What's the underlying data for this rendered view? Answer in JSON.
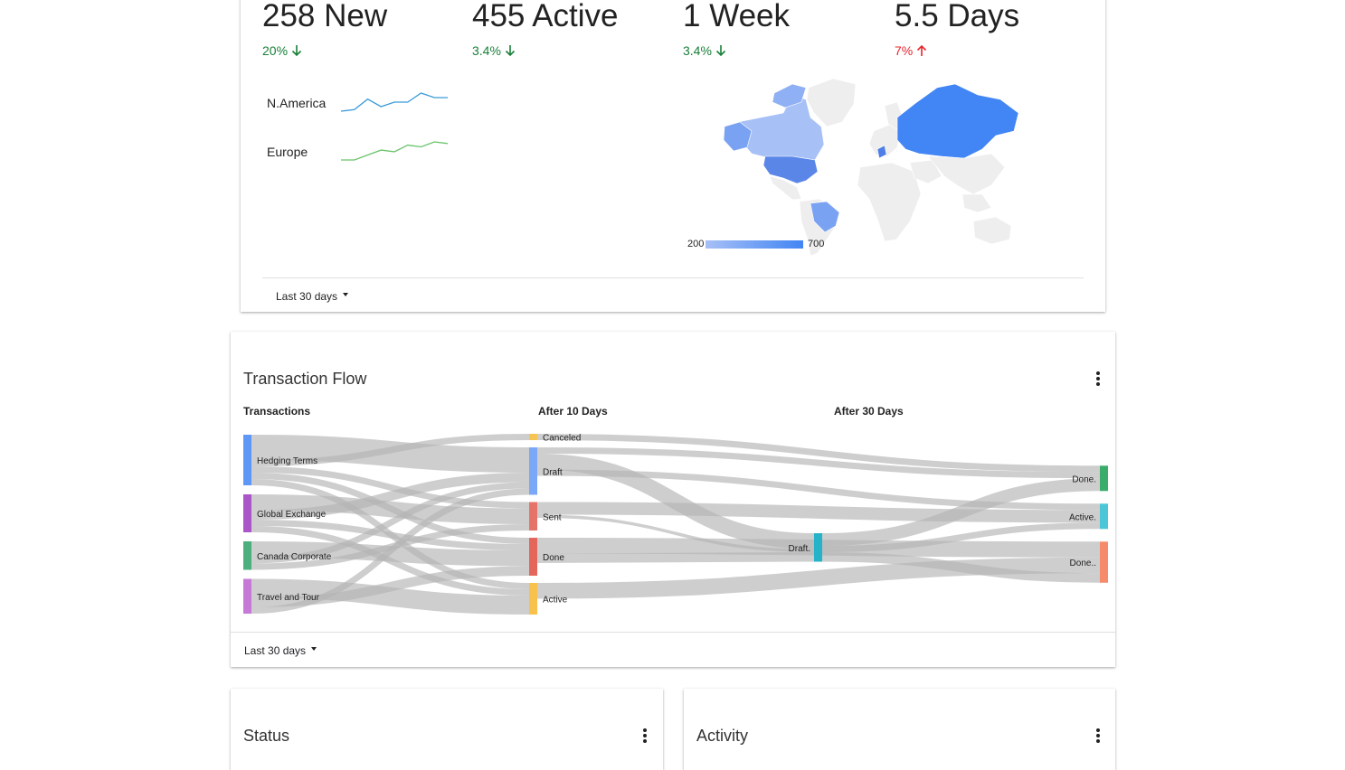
{
  "kpis": [
    {
      "value": "258 New",
      "delta": "20%",
      "direction": "down"
    },
    {
      "value": "455 Active",
      "delta": "3.4%",
      "direction": "down"
    },
    {
      "value": "1 Week",
      "delta": "3.4%",
      "direction": "down"
    },
    {
      "value": "5.5 Days",
      "delta": "7%",
      "direction": "up"
    }
  ],
  "regions": [
    {
      "label": "N.America",
      "color": "#3b9ad9",
      "trend": [
        0,
        1,
        8,
        3,
        6,
        6,
        12,
        9,
        9
      ]
    },
    {
      "label": "Europe",
      "color": "#6ac36a",
      "trend": [
        0,
        0,
        3,
        6,
        5,
        9,
        8,
        11,
        10
      ]
    }
  ],
  "map": {
    "legend_min": "200",
    "legend_max": "700",
    "color_low": "#a7c0f6",
    "color_high": "#4285f4"
  },
  "kpi_footer": {
    "range_label": "Last 30 days"
  },
  "transaction_flow": {
    "title": "Transaction Flow",
    "columns": [
      "Transactions",
      "After 10 Days",
      "After 30 Days"
    ],
    "range_label": "Last 30 days"
  },
  "chart_data": {
    "type": "sankey",
    "nodes": [
      {
        "id": "hedging",
        "label": "Hedging Terms",
        "stage": 0,
        "color": "#5e97f6"
      },
      {
        "id": "global",
        "label": "Global Exchange",
        "stage": 0,
        "color": "#ab56c8"
      },
      {
        "id": "canada",
        "label": "Canada Corporate",
        "stage": 0,
        "color": "#4caf7d"
      },
      {
        "id": "travel",
        "label": "Travel and Tour",
        "stage": 0,
        "color": "#c679d6"
      },
      {
        "id": "canceled",
        "label": "Canceled",
        "stage": 1,
        "color": "#f6c453"
      },
      {
        "id": "draft",
        "label": "Draft",
        "stage": 1,
        "color": "#7ba7f7"
      },
      {
        "id": "sent",
        "label": "Sent",
        "stage": 1,
        "color": "#e57368"
      },
      {
        "id": "done1",
        "label": "Done",
        "stage": 1,
        "color": "#e4665a"
      },
      {
        "id": "active1",
        "label": "Active",
        "stage": 1,
        "color": "#f7c14c"
      },
      {
        "id": "draft2",
        "label": "Draft.",
        "stage": 2,
        "color": "#26b3c7"
      },
      {
        "id": "done3",
        "label": "Done.",
        "stage": 3,
        "color": "#3aad6a"
      },
      {
        "id": "active3",
        "label": "Active.",
        "stage": 3,
        "color": "#4cc6d6"
      },
      {
        "id": "done3b",
        "label": "Done..",
        "stage": 3,
        "color": "#f58b6b"
      }
    ],
    "links": [
      {
        "source": "hedging",
        "target": "draft",
        "value": 8
      },
      {
        "source": "hedging",
        "target": "canceled",
        "value": 2
      },
      {
        "source": "hedging",
        "target": "sent",
        "value": 2
      },
      {
        "source": "hedging",
        "target": "done1",
        "value": 2
      },
      {
        "source": "hedging",
        "target": "active1",
        "value": 2
      },
      {
        "source": "global",
        "target": "sent",
        "value": 5
      },
      {
        "source": "global",
        "target": "draft",
        "value": 3
      },
      {
        "source": "global",
        "target": "done1",
        "value": 2
      },
      {
        "source": "global",
        "target": "active1",
        "value": 2
      },
      {
        "source": "canada",
        "target": "done1",
        "value": 5
      },
      {
        "source": "canada",
        "target": "draft",
        "value": 2
      },
      {
        "source": "canada",
        "target": "sent",
        "value": 2
      },
      {
        "source": "travel",
        "target": "active1",
        "value": 6
      },
      {
        "source": "travel",
        "target": "done1",
        "value": 3
      },
      {
        "source": "travel",
        "target": "draft",
        "value": 2
      },
      {
        "source": "canceled",
        "target": "done3",
        "value": 2
      },
      {
        "source": "draft",
        "target": "done3",
        "value": 2
      },
      {
        "source": "draft",
        "target": "draft2",
        "value": 5
      },
      {
        "source": "draft",
        "target": "active3",
        "value": 2
      },
      {
        "source": "sent",
        "target": "active3",
        "value": 4
      },
      {
        "source": "sent",
        "target": "draft2",
        "value": 1
      },
      {
        "source": "done1",
        "target": "done3b",
        "value": 5
      },
      {
        "source": "done1",
        "target": "draft2",
        "value": 3
      },
      {
        "source": "active1",
        "target": "done3b",
        "value": 5
      },
      {
        "source": "draft2",
        "target": "done3",
        "value": 4
      },
      {
        "source": "draft2",
        "target": "active3",
        "value": 2
      },
      {
        "source": "draft2",
        "target": "done3b",
        "value": 3
      }
    ]
  },
  "status_card": {
    "title": "Status"
  },
  "activity_card": {
    "title": "Activity"
  }
}
